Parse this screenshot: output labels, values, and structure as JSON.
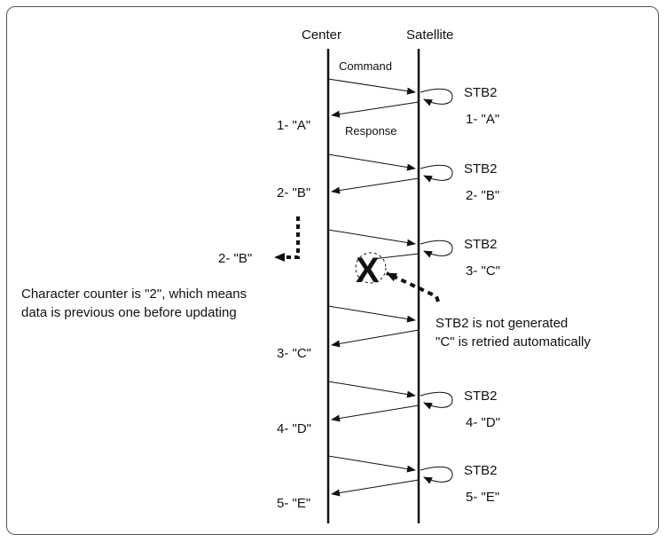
{
  "columns": {
    "center": "Center",
    "satellite": "Satellite"
  },
  "message_labels": {
    "command": "Command",
    "response": "Response"
  },
  "sequences": [
    {
      "stb": "STB2",
      "sat_label": "1- \"A\"",
      "center_label": "1- \"A\""
    },
    {
      "stb": "STB2",
      "sat_label": "2- \"B\"",
      "center_label": "2- \"B\""
    },
    {
      "stb": "STB2",
      "sat_label": "3- \"C\"",
      "center_label": ""
    },
    {
      "stb": "",
      "sat_label": "",
      "center_label": "3- \"C\""
    },
    {
      "stb": "STB2",
      "sat_label": "4- \"D\"",
      "center_label": "4- \"D\""
    },
    {
      "stb": "STB2",
      "sat_label": "5- \"E\"",
      "center_label": "5- \"E\""
    }
  ],
  "side_label": "2- \"B\"",
  "note_left": {
    "line1": "Character counter is \"2\", which means",
    "line2": "data is previous one before updating"
  },
  "note_right": {
    "line1": "STB2 is not generated",
    "line2": "\"C\" is retried automatically"
  },
  "error_mark": "X",
  "colors": {
    "line": "#111111",
    "frame": "#555555"
  }
}
